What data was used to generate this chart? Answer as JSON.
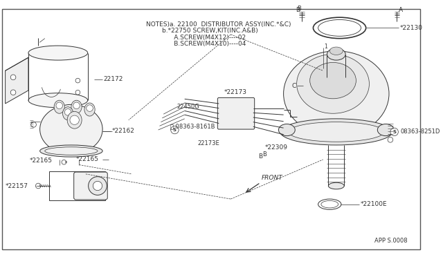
{
  "bg_color": "#FFFFFF",
  "border_color": "#333333",
  "line_color": "#333333",
  "notes_lines": [
    "NOTES)a. 22100  DISTRIBUTOR ASSY(INC.*&C)",
    "        b.*22750 SCREW,KIT(INC.A&B)",
    "              A.SCREW(M4X12)----02",
    "              B.SCREW(M4X10)----04"
  ],
  "diagram_ref": "APP S.0008",
  "font_size_notes": 6.5,
  "font_size_labels": 6.5
}
